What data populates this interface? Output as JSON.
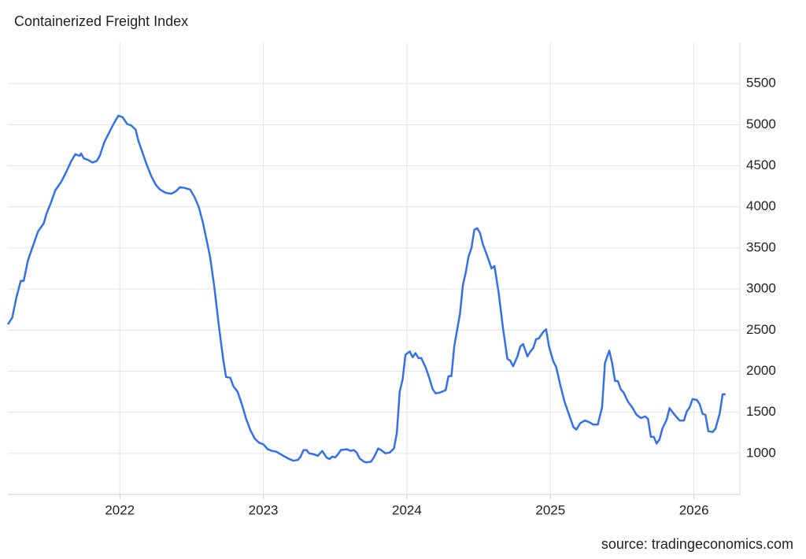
{
  "chart_data": {
    "type": "line",
    "title": "Containerized Freight Index",
    "source": "source: tradingeconomics.com",
    "x": [
      2021.22,
      2021.25,
      2021.28,
      2021.31,
      2021.33,
      2021.36,
      2021.39,
      2021.43,
      2021.47,
      2021.49,
      2021.52,
      2021.55,
      2021.59,
      2021.62,
      2021.66,
      2021.69,
      2021.72,
      2021.73,
      2021.75,
      2021.78,
      2021.81,
      2021.84,
      2021.86,
      2021.89,
      2021.93,
      2021.96,
      2021.99,
      2022.02,
      2022.05,
      2022.08,
      2022.11,
      2022.13,
      2022.16,
      2022.19,
      2022.22,
      2022.25,
      2022.28,
      2022.32,
      2022.36,
      2022.39,
      2022.42,
      2022.45,
      2022.49,
      2022.52,
      2022.55,
      2022.58,
      2022.61,
      2022.63,
      2022.66,
      2022.69,
      2022.72,
      2022.74,
      2022.77,
      2022.79,
      2022.82,
      2022.85,
      2022.88,
      2022.91,
      2022.94,
      2022.97,
      2023.0,
      2023.03,
      2023.06,
      2023.09,
      2023.12,
      2023.15,
      2023.18,
      2023.21,
      2023.24,
      2023.26,
      2023.28,
      2023.3,
      2023.32,
      2023.35,
      2023.38,
      2023.41,
      2023.44,
      2023.46,
      2023.48,
      2023.5,
      2023.52,
      2023.54,
      2023.58,
      2023.61,
      2023.63,
      2023.65,
      2023.67,
      2023.7,
      2023.72,
      2023.75,
      2023.77,
      2023.8,
      2023.82,
      2023.85,
      2023.88,
      2023.91,
      2023.93,
      2023.95,
      2023.97,
      2023.99,
      2024.02,
      2024.04,
      2024.06,
      2024.08,
      2024.1,
      2024.13,
      2024.15,
      2024.18,
      2024.2,
      2024.23,
      2024.27,
      2024.29,
      2024.31,
      2024.33,
      2024.37,
      2024.39,
      2024.41,
      2024.43,
      2024.45,
      2024.47,
      2024.49,
      2024.51,
      2024.53,
      2024.56,
      2024.59,
      2024.61,
      2024.64,
      2024.67,
      2024.7,
      2024.72,
      2024.74,
      2024.77,
      2024.79,
      2024.81,
      2024.84,
      2024.86,
      2024.88,
      2024.9,
      2024.92,
      2024.95,
      2024.97,
      2024.99,
      2025.02,
      2025.04,
      2025.07,
      2025.1,
      2025.13,
      2025.16,
      2025.18,
      2025.21,
      2025.24,
      2025.27,
      2025.3,
      2025.33,
      2025.36,
      2025.38,
      2025.41,
      2025.43,
      2025.45,
      2025.47,
      2025.49,
      2025.51,
      2025.54,
      2025.57,
      2025.6,
      2025.63,
      2025.66,
      2025.68,
      2025.7,
      2025.72,
      2025.74,
      2025.76,
      2025.78,
      2025.81,
      2025.83,
      2025.86,
      2025.88,
      2025.9,
      2025.93,
      2025.95,
      2025.97,
      2025.99,
      2026.02,
      2026.04,
      2026.06,
      2026.08,
      2026.1,
      2026.13,
      2026.15,
      2026.18,
      2026.2,
      2026.22
    ],
    "series": [
      {
        "color": "#3370eb",
        "values": [
          2570,
          2650,
          2900,
          3100,
          3100,
          3350,
          3500,
          3700,
          3800,
          3920,
          4050,
          4200,
          4300,
          4400,
          4550,
          4640,
          4620,
          4650,
          4590,
          4570,
          4540,
          4560,
          4620,
          4780,
          4920,
          5020,
          5110,
          5090,
          5010,
          4990,
          4940,
          4800,
          4650,
          4500,
          4370,
          4270,
          4210,
          4170,
          4160,
          4190,
          4240,
          4230,
          4210,
          4120,
          4000,
          3800,
          3550,
          3380,
          3000,
          2550,
          2150,
          1930,
          1920,
          1820,
          1750,
          1600,
          1420,
          1280,
          1180,
          1130,
          1110,
          1050,
          1030,
          1020,
          990,
          960,
          930,
          910,
          920,
          960,
          1040,
          1040,
          1000,
          990,
          970,
          1030,
          950,
          930,
          960,
          950,
          990,
          1040,
          1050,
          1030,
          1040,
          1010,
          940,
          900,
          890,
          900,
          950,
          1060,
          1040,
          1000,
          1010,
          1060,
          1250,
          1750,
          1900,
          2200,
          2240,
          2170,
          2220,
          2160,
          2160,
          2050,
          1950,
          1780,
          1730,
          1740,
          1770,
          1940,
          1940,
          2300,
          2700,
          3050,
          3200,
          3400,
          3500,
          3720,
          3740,
          3680,
          3540,
          3400,
          3250,
          3280,
          2950,
          2520,
          2150,
          2130,
          2060,
          2180,
          2300,
          2330,
          2180,
          2240,
          2280,
          2390,
          2400,
          2480,
          2510,
          2300,
          2120,
          2050,
          1820,
          1620,
          1470,
          1320,
          1290,
          1370,
          1400,
          1380,
          1350,
          1350,
          1560,
          2100,
          2250,
          2100,
          1880,
          1880,
          1780,
          1740,
          1630,
          1560,
          1470,
          1430,
          1450,
          1420,
          1200,
          1200,
          1120,
          1170,
          1300,
          1410,
          1550,
          1480,
          1440,
          1400,
          1400,
          1510,
          1560,
          1660,
          1650,
          1600,
          1480,
          1470,
          1270,
          1260,
          1300,
          1490,
          1720,
          1720
        ]
      }
    ],
    "xlim": [
      2021.22,
      2026.32
    ],
    "xticks": [
      2022,
      2023,
      2024,
      2025,
      2026
    ],
    "ylim": [
      500,
      6000
    ],
    "yticks": [
      1000,
      1500,
      2000,
      2500,
      3000,
      3500,
      4000,
      4500,
      5000,
      5500
    ],
    "grid": true
  }
}
